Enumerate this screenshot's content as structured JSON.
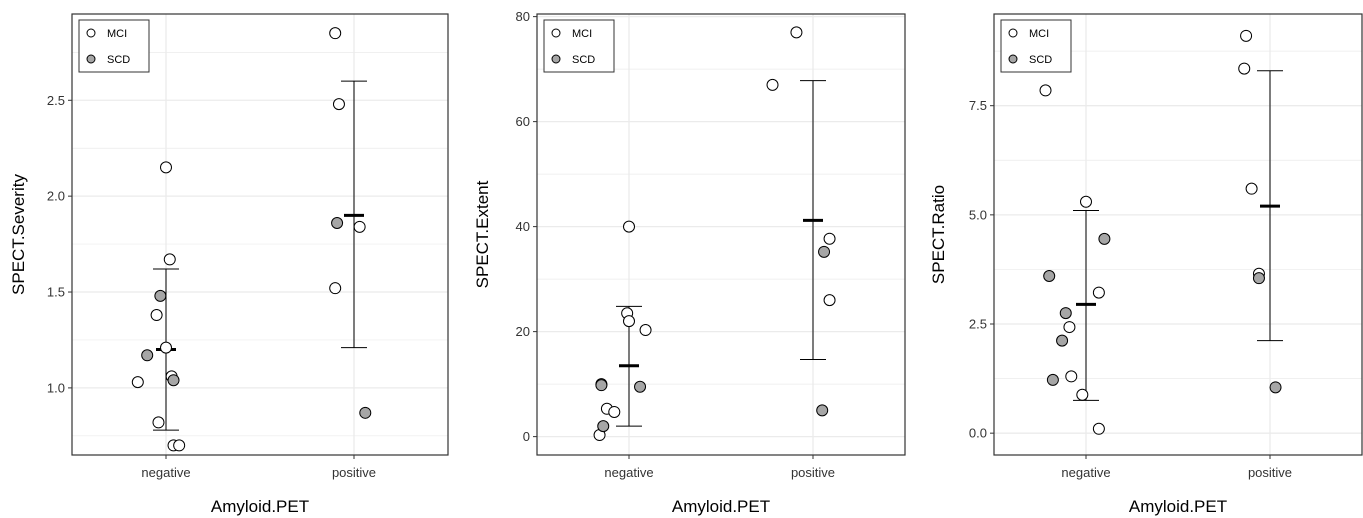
{
  "chart_data": [
    {
      "type": "scatter",
      "xlabel": "Amyloid.PET",
      "ylabel": "SPECT.Severity",
      "categories": [
        "negative",
        "positive"
      ],
      "ylim": [
        0.65,
        2.95
      ],
      "yticks": [
        1.0,
        1.5,
        2.0,
        2.5
      ],
      "ytick_labels": [
        "1.0",
        "1.5",
        "2.0",
        "2.5"
      ],
      "legend": {
        "position": "top-left",
        "entries": [
          "MCI",
          "SCD"
        ]
      },
      "series": [
        {
          "name": "MCI",
          "points": [
            {
              "x": "negative",
              "jitter": 0.0,
              "y": 2.15
            },
            {
              "x": "negative",
              "jitter": 0.02,
              "y": 1.67
            },
            {
              "x": "negative",
              "jitter": -0.05,
              "y": 1.38
            },
            {
              "x": "negative",
              "jitter": 0.0,
              "y": 1.21
            },
            {
              "x": "negative",
              "jitter": 0.03,
              "y": 1.06
            },
            {
              "x": "negative",
              "jitter": -0.15,
              "y": 1.03
            },
            {
              "x": "negative",
              "jitter": -0.04,
              "y": 0.82
            },
            {
              "x": "negative",
              "jitter": 0.04,
              "y": 0.7
            },
            {
              "x": "negative",
              "jitter": 0.07,
              "y": 0.7
            },
            {
              "x": "positive",
              "jitter": -0.1,
              "y": 2.85
            },
            {
              "x": "positive",
              "jitter": -0.08,
              "y": 2.48
            },
            {
              "x": "positive",
              "jitter": 0.03,
              "y": 1.84
            },
            {
              "x": "positive",
              "jitter": -0.1,
              "y": 1.52
            }
          ]
        },
        {
          "name": "SCD",
          "points": [
            {
              "x": "negative",
              "jitter": -0.03,
              "y": 1.48
            },
            {
              "x": "negative",
              "jitter": -0.1,
              "y": 1.17
            },
            {
              "x": "negative",
              "jitter": 0.04,
              "y": 1.04
            },
            {
              "x": "positive",
              "jitter": -0.09,
              "y": 1.86
            },
            {
              "x": "positive",
              "jitter": 0.06,
              "y": 0.87
            }
          ]
        }
      ],
      "summary": [
        {
          "x": "negative",
          "mean": 1.2,
          "lower": 0.78,
          "upper": 1.62
        },
        {
          "x": "positive",
          "mean": 1.9,
          "lower": 1.21,
          "upper": 2.6
        }
      ]
    },
    {
      "type": "scatter",
      "xlabel": "Amyloid.PET",
      "ylabel": "SPECT.Extent",
      "categories": [
        "negative",
        "positive"
      ],
      "ylim": [
        -3.5,
        80.5
      ],
      "yticks": [
        0,
        20,
        40,
        60,
        80
      ],
      "ytick_labels": [
        "0",
        "20",
        "40",
        "60",
        "80"
      ],
      "legend": {
        "position": "top-left",
        "entries": [
          "MCI",
          "SCD"
        ]
      },
      "series": [
        {
          "name": "MCI",
          "points": [
            {
              "x": "negative",
              "jitter": 0.0,
              "y": 40
            },
            {
              "x": "negative",
              "jitter": -0.01,
              "y": 23.5
            },
            {
              "x": "negative",
              "jitter": 0.0,
              "y": 22
            },
            {
              "x": "negative",
              "jitter": 0.09,
              "y": 20.3
            },
            {
              "x": "negative",
              "jitter": -0.15,
              "y": 10
            },
            {
              "x": "negative",
              "jitter": -0.12,
              "y": 5.3
            },
            {
              "x": "negative",
              "jitter": -0.08,
              "y": 4.7
            },
            {
              "x": "negative",
              "jitter": -0.16,
              "y": 0.3
            },
            {
              "x": "positive",
              "jitter": -0.09,
              "y": 77
            },
            {
              "x": "positive",
              "jitter": -0.22,
              "y": 67
            },
            {
              "x": "positive",
              "jitter": 0.09,
              "y": 37.7
            },
            {
              "x": "positive",
              "jitter": 0.09,
              "y": 26
            }
          ]
        },
        {
          "name": "SCD",
          "points": [
            {
              "x": "negative",
              "jitter": -0.15,
              "y": 9.8
            },
            {
              "x": "negative",
              "jitter": 0.06,
              "y": 9.5
            },
            {
              "x": "negative",
              "jitter": -0.14,
              "y": 2
            },
            {
              "x": "positive",
              "jitter": 0.06,
              "y": 35.2
            },
            {
              "x": "positive",
              "jitter": 0.05,
              "y": 5
            }
          ]
        }
      ],
      "summary": [
        {
          "x": "negative",
          "mean": 13.5,
          "lower": 2,
          "upper": 24.8
        },
        {
          "x": "positive",
          "mean": 41.2,
          "lower": 14.7,
          "upper": 67.8
        }
      ]
    },
    {
      "type": "scatter",
      "xlabel": "Amyloid.PET",
      "ylabel": "SPECT.Ratio",
      "categories": [
        "negative",
        "positive"
      ],
      "ylim": [
        -0.5,
        9.6
      ],
      "yticks": [
        0.0,
        2.5,
        5.0,
        7.5
      ],
      "ytick_labels": [
        "0.0",
        "2.5",
        "5.0",
        "7.5"
      ],
      "legend": {
        "position": "top-left",
        "entries": [
          "MCI",
          "SCD"
        ]
      },
      "series": [
        {
          "name": "MCI",
          "points": [
            {
              "x": "negative",
              "jitter": -0.22,
              "y": 7.85
            },
            {
              "x": "negative",
              "jitter": 0.0,
              "y": 5.3
            },
            {
              "x": "negative",
              "jitter": 0.07,
              "y": 3.22
            },
            {
              "x": "negative",
              "jitter": -0.09,
              "y": 2.43
            },
            {
              "x": "negative",
              "jitter": -0.08,
              "y": 1.3
            },
            {
              "x": "negative",
              "jitter": -0.02,
              "y": 0.88
            },
            {
              "x": "negative",
              "jitter": 0.07,
              "y": 0.1
            },
            {
              "x": "positive",
              "jitter": -0.13,
              "y": 9.1
            },
            {
              "x": "positive",
              "jitter": -0.14,
              "y": 8.35
            },
            {
              "x": "positive",
              "jitter": -0.1,
              "y": 5.6
            },
            {
              "x": "positive",
              "jitter": -0.06,
              "y": 3.65
            }
          ]
        },
        {
          "name": "SCD",
          "points": [
            {
              "x": "negative",
              "jitter": 0.1,
              "y": 4.45
            },
            {
              "x": "negative",
              "jitter": -0.2,
              "y": 3.6
            },
            {
              "x": "negative",
              "jitter": -0.11,
              "y": 2.75
            },
            {
              "x": "negative",
              "jitter": -0.13,
              "y": 2.12
            },
            {
              "x": "negative",
              "jitter": -0.18,
              "y": 1.22
            },
            {
              "x": "positive",
              "jitter": -0.06,
              "y": 3.55
            },
            {
              "x": "positive",
              "jitter": 0.03,
              "y": 1.05
            }
          ]
        }
      ],
      "summary": [
        {
          "x": "negative",
          "mean": 2.95,
          "lower": 0.75,
          "upper": 5.1
        },
        {
          "x": "positive",
          "mean": 5.2,
          "lower": 2.12,
          "upper": 8.3
        }
      ]
    }
  ],
  "colors": {
    "mci_fill": "#ffffff",
    "scd_fill": "#a6a6a6",
    "marker_stroke": "#000000",
    "grid": "#ebebeb",
    "panel_border": "#333333"
  }
}
